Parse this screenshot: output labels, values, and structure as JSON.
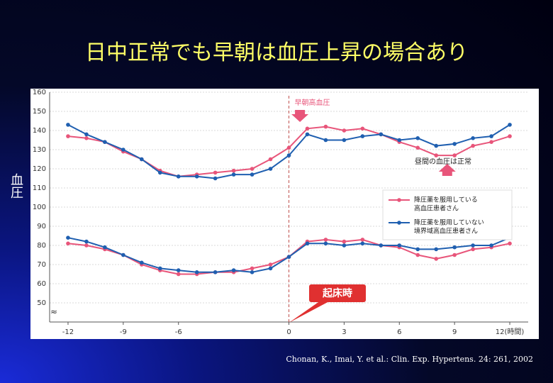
{
  "chart_data": {
    "type": "line",
    "title": "日中正常でも早朝は血圧上昇の場合あり",
    "ylabel": "血圧",
    "source": "Chonan, K., Imai, Y. et al.: Clin. Exp. Hypertens. 24: 261, 2002",
    "x": [
      -12,
      -11,
      -10,
      -9,
      -8,
      -7,
      -6,
      -5,
      -4,
      -3,
      -2,
      -1,
      0,
      1,
      2,
      3,
      4,
      5,
      6,
      7,
      8,
      9,
      10,
      11,
      12
    ],
    "series": [
      {
        "name": [
          "降圧薬を服用している",
          "高血圧患者さん"
        ],
        "color": "#e8557a",
        "values": [
          137,
          136,
          134,
          129,
          125,
          119,
          116,
          117,
          118,
          119,
          120,
          125,
          131,
          141,
          142,
          140,
          141,
          138,
          134,
          131,
          127,
          127,
          132,
          134,
          137
        ]
      },
      {
        "name": [
          "降圧薬を服用していない",
          "境界域高血圧患者さん"
        ],
        "color": "#1f5fb0",
        "values": [
          143,
          138,
          134,
          130,
          125,
          118,
          116,
          116,
          115,
          117,
          117,
          120,
          127,
          138,
          135,
          135,
          137,
          138,
          135,
          136,
          132,
          133,
          136,
          137,
          143
        ]
      },
      {
        "color": "#e8557a",
        "values": [
          81,
          80,
          78,
          75,
          70,
          67,
          65,
          65,
          66,
          66,
          68,
          70,
          74,
          82,
          83,
          82,
          83,
          80,
          79,
          75,
          73,
          75,
          78,
          79,
          81
        ]
      },
      {
        "color": "#1f5fb0",
        "values": [
          84,
          82,
          79,
          75,
          71,
          68,
          67,
          66,
          66,
          67,
          66,
          68,
          74,
          81,
          81,
          80,
          81,
          80,
          80,
          78,
          78,
          79,
          80,
          80,
          84
        ]
      }
    ],
    "xlim": [
      -13,
      13
    ],
    "xticks": [
      -12,
      -9,
      -6,
      0,
      3,
      6,
      9,
      {
        "value": 12,
        "label": "12(時間)"
      }
    ],
    "ylim": [
      40,
      160
    ],
    "yticks": [
      50,
      60,
      70,
      80,
      90,
      100,
      110,
      120,
      130,
      140,
      150,
      160
    ],
    "annotations": [
      "早朝高血圧",
      "昼間の血圧は正常",
      "起床時"
    ]
  }
}
